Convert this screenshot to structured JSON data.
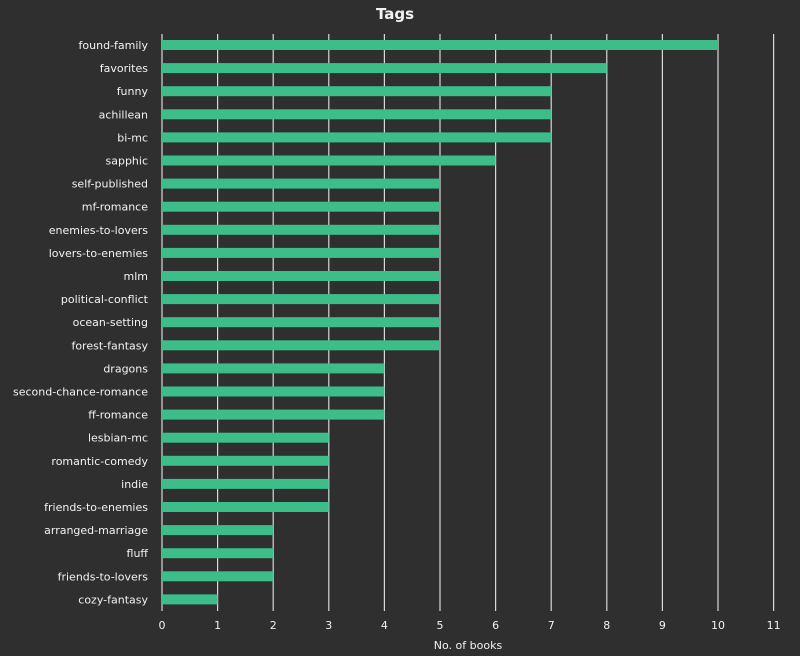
{
  "chart_data": {
    "type": "bar",
    "orientation": "horizontal",
    "title": "Tags",
    "xlabel": "No. of books",
    "ylabel": "",
    "xlim": [
      0,
      11
    ],
    "xticks": [
      0,
      1,
      2,
      3,
      4,
      5,
      6,
      7,
      8,
      9,
      10,
      11
    ],
    "grid": "vertical",
    "bar_color": "#3dbd8a",
    "background_color": "#2f2f2f",
    "gridline_color": "#d9d9d9",
    "text_color": "#f2f2f2",
    "categories": [
      "found-family",
      "favorites",
      "funny",
      "achillean",
      "bi-mc",
      "sapphic",
      "self-published",
      "mf-romance",
      "enemies-to-lovers",
      "lovers-to-enemies",
      "mlm",
      "political-conflict",
      "ocean-setting",
      "forest-fantasy",
      "dragons",
      "second-chance-romance",
      "ff-romance",
      "lesbian-mc",
      "romantic-comedy",
      "indie",
      "friends-to-enemies",
      "arranged-marriage",
      "fluff",
      "friends-to-lovers",
      "cozy-fantasy"
    ],
    "values": [
      10,
      8,
      7,
      7,
      7,
      6,
      5,
      5,
      5,
      5,
      5,
      5,
      5,
      5,
      4,
      4,
      4,
      3,
      3,
      3,
      3,
      2,
      2,
      2,
      1
    ]
  }
}
